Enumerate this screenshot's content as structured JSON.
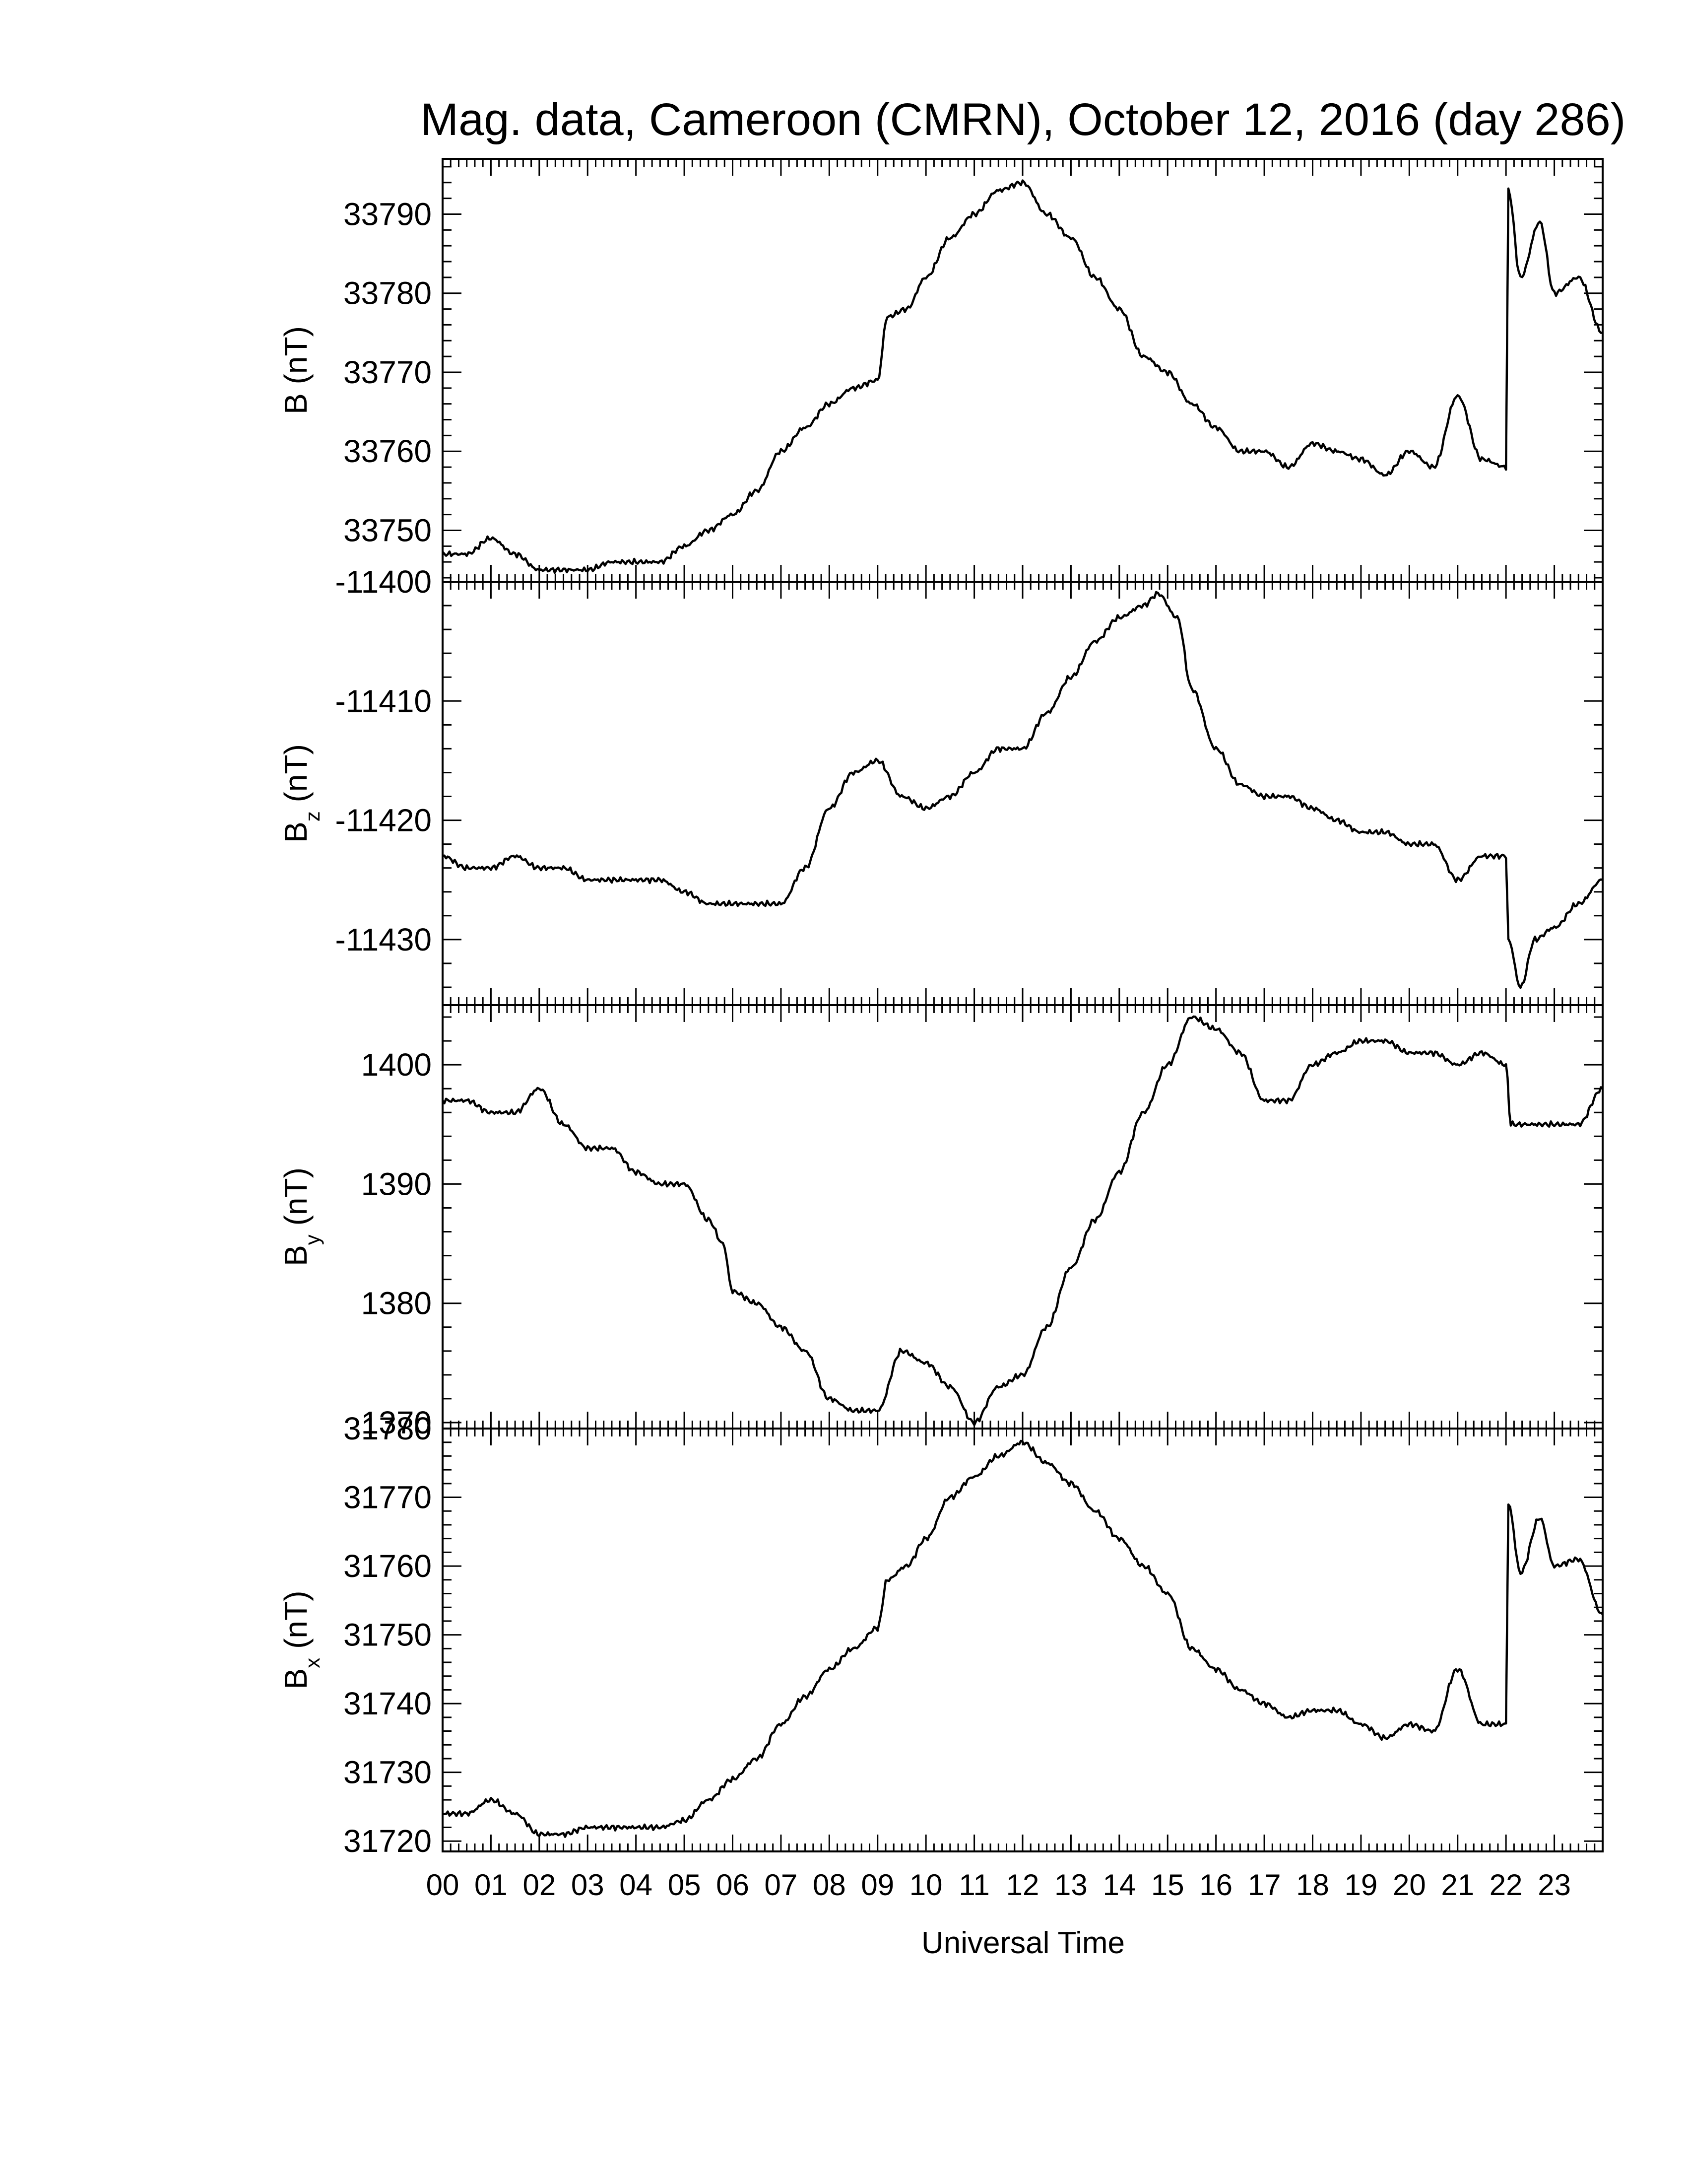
{
  "title": "Mag. data, Cameroon (CMRN), October 12, 2016 (day 286)",
  "chart_data": [
    {
      "type": "line",
      "panel": "B",
      "ylabel": "B",
      "ylabel_sub": "",
      "ylabel_unit": "(nT)",
      "ylim": [
        33743.5,
        33797
      ],
      "yticks": [
        33750,
        33760,
        33770,
        33780,
        33790
      ],
      "x": [
        0,
        0.5,
        1,
        1.5,
        2,
        2.5,
        3,
        3.5,
        4,
        4.5,
        5,
        5.5,
        6,
        6.5,
        7,
        7.5,
        8,
        8.5,
        9,
        9.2,
        9.6,
        10,
        10.5,
        11,
        11.5,
        12,
        12.5,
        13,
        13.5,
        14,
        14.5,
        15,
        15.5,
        16,
        16.5,
        17,
        17.5,
        18,
        18.5,
        19,
        19.5,
        20,
        20.5,
        21,
        21.5,
        22,
        22.05,
        22.3,
        22.7,
        23,
        23.5,
        24
      ],
      "y": [
        33747,
        33747,
        33749,
        33747,
        33745,
        33745,
        33745,
        33746,
        33746,
        33746,
        33748,
        33750,
        33752,
        33755,
        33760,
        33763,
        33766,
        33768,
        33769,
        33777,
        33778,
        33782,
        33787,
        33790,
        33793,
        33794,
        33790,
        33787,
        33782,
        33778,
        33772,
        33770,
        33766,
        33763,
        33760,
        33760,
        33758,
        33761,
        33760,
        33759,
        33757,
        33760,
        33758,
        33767,
        33759,
        33758,
        33793,
        33782,
        33789,
        33780,
        33782,
        33775
      ]
    },
    {
      "type": "line",
      "panel": "Bz",
      "ylabel": "B",
      "ylabel_sub": "z",
      "ylabel_unit": "(nT)",
      "ylim": [
        -11435.5,
        -11400
      ],
      "yticks": [
        -11400,
        -11410,
        -11420,
        -11430
      ],
      "x": [
        0,
        0.5,
        1,
        1.5,
        2,
        2.5,
        3,
        3.5,
        4,
        4.5,
        5,
        5.5,
        6,
        6.5,
        7,
        7.5,
        8,
        8.5,
        9,
        9.5,
        10,
        10.5,
        11,
        11.5,
        12,
        12.5,
        13,
        13.5,
        14,
        14.5,
        14.8,
        15.2,
        15.5,
        16,
        16.5,
        17,
        17.5,
        18,
        18.5,
        19,
        19.5,
        20,
        20.5,
        21,
        21.5,
        22,
        22.05,
        22.3,
        22.6,
        23,
        23.5,
        24
      ],
      "y": [
        -11423,
        -11424,
        -11424,
        -11423,
        -11424,
        -11424,
        -11425,
        -11425,
        -11425,
        -11425,
        -11426,
        -11427,
        -11427,
        -11427,
        -11427,
        -11424,
        -11419,
        -11416,
        -11415,
        -11418,
        -11419,
        -11418,
        -11416,
        -11414,
        -11414,
        -11411,
        -11408,
        -11405,
        -11403,
        -11402,
        -11401,
        -11403,
        -11409,
        -11414,
        -11417,
        -11418,
        -11418,
        -11419,
        -11420,
        -11421,
        -11421,
        -11422,
        -11422,
        -11425,
        -11423,
        -11423,
        -11430,
        -11434,
        -11430,
        -11429,
        -11427,
        -11425
      ]
    },
    {
      "type": "line",
      "panel": "By",
      "ylabel": "B",
      "ylabel_sub": "y",
      "ylabel_unit": "(nT)",
      "ylim": [
        1369.5,
        1405
      ],
      "yticks": [
        1370,
        1380,
        1390,
        1400
      ],
      "x": [
        0,
        0.5,
        1,
        1.5,
        2,
        2.5,
        3,
        3.5,
        4,
        4.5,
        5,
        5.5,
        5.8,
        6,
        6.5,
        7,
        7.5,
        8,
        8.5,
        9,
        9.5,
        10,
        10.5,
        11,
        11.5,
        12,
        12.5,
        13,
        13.5,
        14,
        14.5,
        15,
        15.5,
        16,
        16.5,
        17,
        17.5,
        18,
        18.5,
        19,
        19.5,
        20,
        20.5,
        21,
        21.5,
        22,
        22.1,
        22.5,
        23,
        23.5,
        24
      ],
      "y": [
        1397,
        1397,
        1396,
        1396,
        1398,
        1395,
        1393,
        1393,
        1391,
        1390,
        1390,
        1387,
        1385,
        1381,
        1380,
        1378,
        1376,
        1372,
        1371,
        1371,
        1376,
        1375,
        1373,
        1370,
        1373,
        1374,
        1378,
        1383,
        1387,
        1391,
        1396,
        1400,
        1404,
        1403,
        1401,
        1397,
        1397,
        1400,
        1401,
        1402,
        1402,
        1401,
        1401,
        1400,
        1401,
        1400,
        1395,
        1395,
        1395,
        1395,
        1398
      ]
    },
    {
      "type": "line",
      "panel": "Bx",
      "ylabel": "B",
      "ylabel_sub": "x",
      "ylabel_unit": "(nT)",
      "ylim": [
        31718.5,
        31780
      ],
      "yticks": [
        31720,
        31730,
        31740,
        31750,
        31760,
        31770,
        31780
      ],
      "xticks": [
        "00",
        "01",
        "02",
        "03",
        "04",
        "05",
        "06",
        "07",
        "08",
        "09",
        "10",
        "11",
        "12",
        "13",
        "14",
        "15",
        "16",
        "17",
        "18",
        "19",
        "20",
        "21",
        "22",
        "23"
      ],
      "xlabel": "Universal Time",
      "x": [
        0,
        0.5,
        1,
        1.5,
        2,
        2.5,
        3,
        3.5,
        4,
        4.5,
        5,
        5.5,
        6,
        6.5,
        7,
        7.5,
        8,
        8.5,
        9,
        9.2,
        9.6,
        10,
        10.5,
        11,
        11.5,
        12,
        12.5,
        13,
        13.5,
        14,
        14.5,
        15,
        15.5,
        16,
        16.5,
        17,
        17.5,
        18,
        18.5,
        19,
        19.5,
        20,
        20.5,
        21,
        21.5,
        22,
        22.05,
        22.3,
        22.7,
        23,
        23.5,
        24
      ],
      "y": [
        31724,
        31724,
        31726,
        31724,
        31721,
        31721,
        31722,
        31722,
        31722,
        31722,
        31723,
        31726,
        31729,
        31732,
        31737,
        31741,
        31745,
        31748,
        31751,
        31758,
        31760,
        31764,
        31770,
        31773,
        31776,
        31778,
        31775,
        31772,
        31768,
        31764,
        31760,
        31756,
        31748,
        31745,
        31742,
        31740,
        31738,
        31739,
        31739,
        31737,
        31735,
        31737,
        31736,
        31745,
        31737,
        31737,
        31769,
        31759,
        31767,
        31760,
        31761,
        31753
      ]
    }
  ]
}
